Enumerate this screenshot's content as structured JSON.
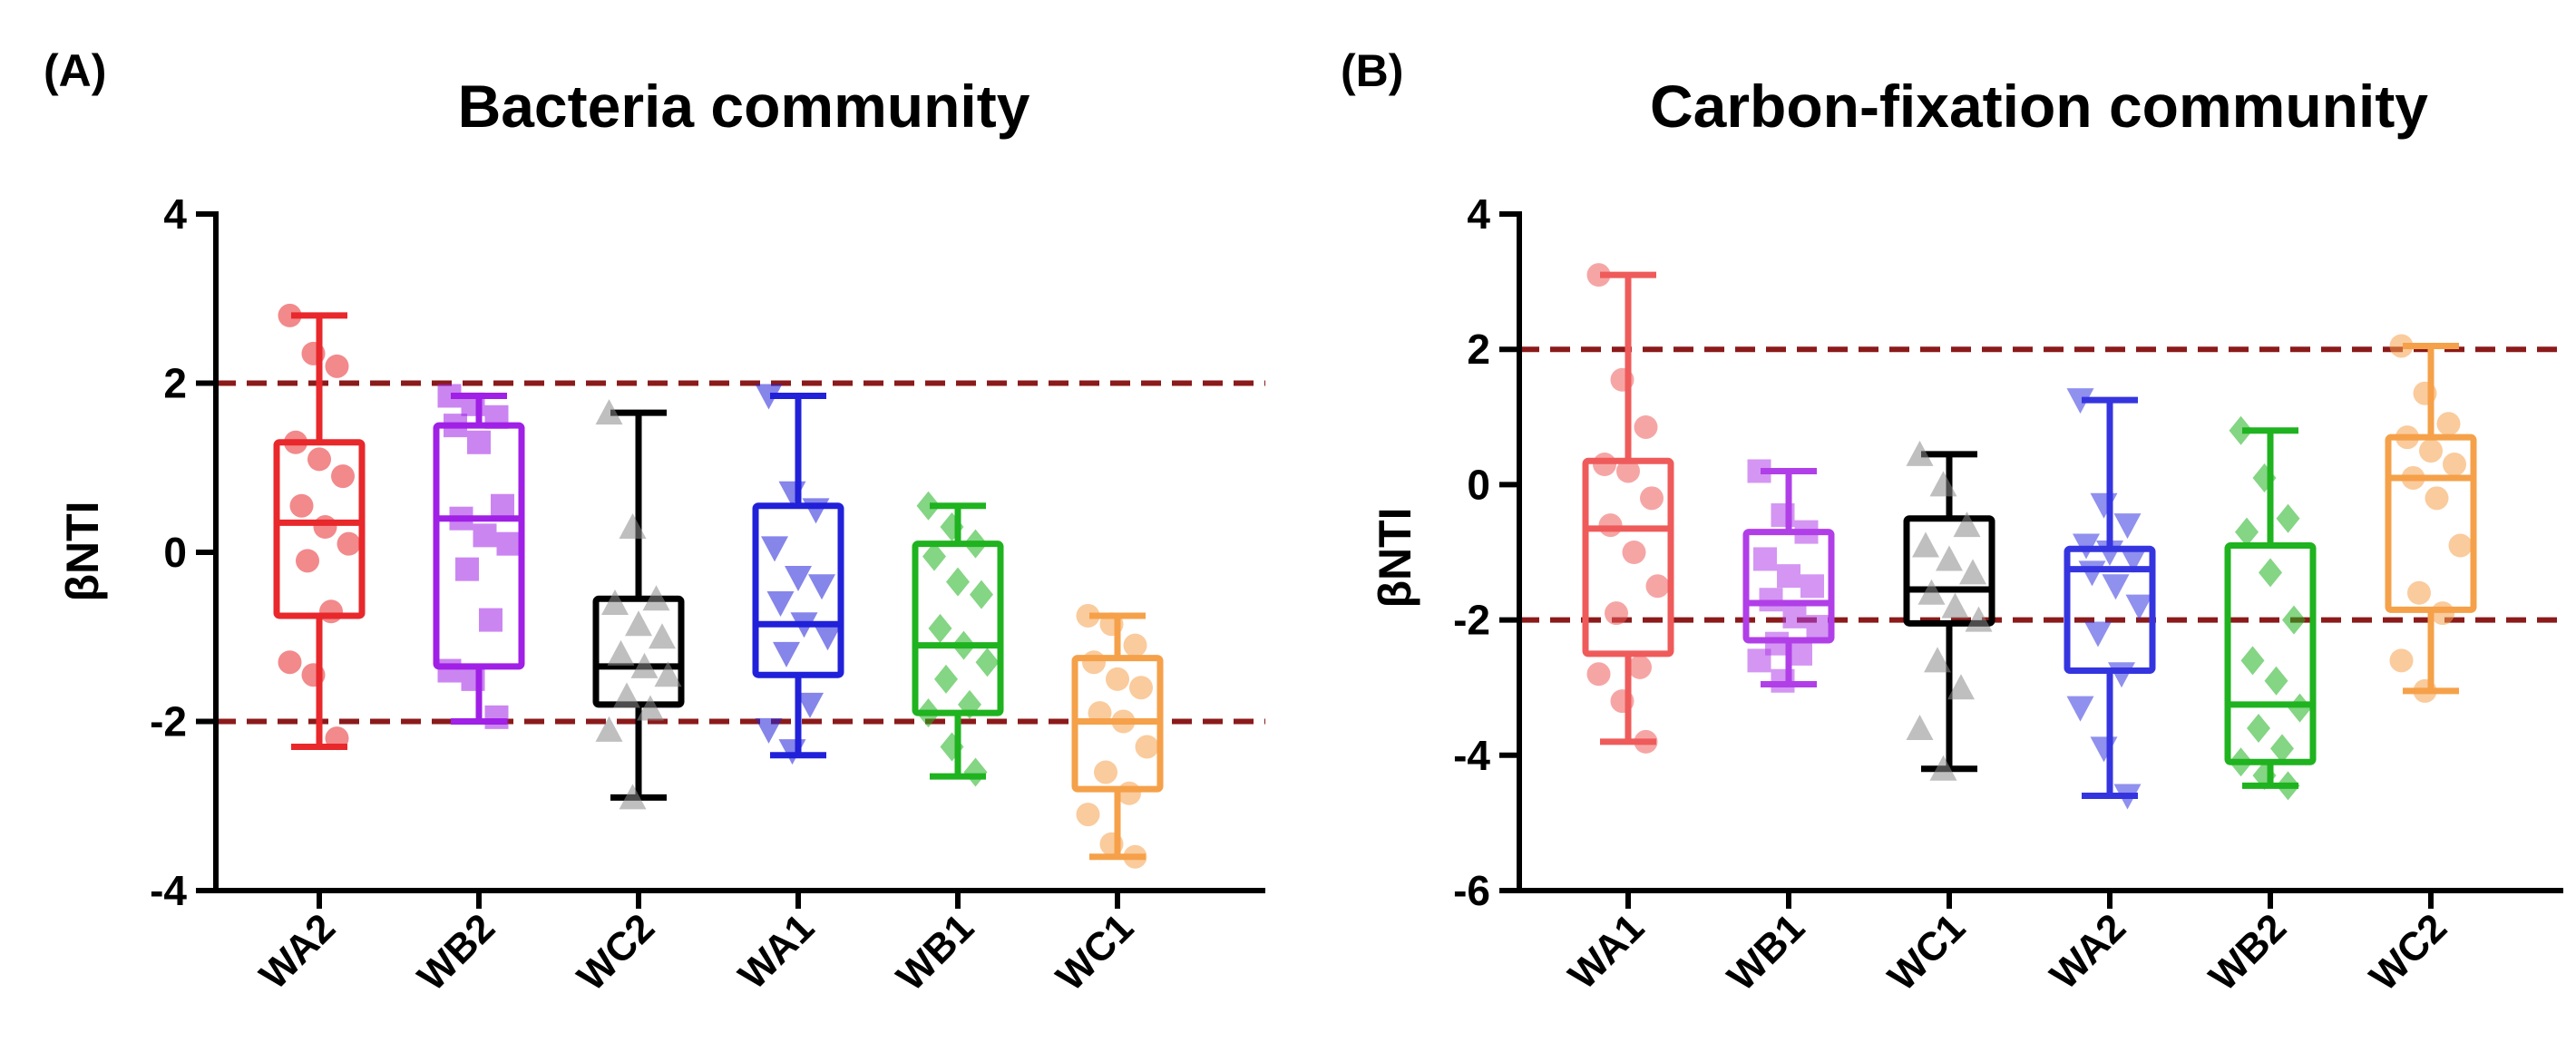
{
  "chart_data": [
    {
      "type": "box",
      "panel_label": "(A)",
      "title": "Bacteria community",
      "ylabel": "βNTI",
      "xlabel": "",
      "ylim": [
        -4,
        4
      ],
      "yticks": [
        4,
        2,
        0,
        -2,
        -4
      ],
      "reference_lines": [
        2,
        -2
      ],
      "grid": false,
      "series": [
        {
          "name": "WA2",
          "color": "#e8282b",
          "marker": "circle",
          "min": -2.3,
          "q1": -0.75,
          "median": 0.35,
          "q3": 1.3,
          "max": 2.8,
          "points": [
            2.8,
            2.35,
            2.2,
            1.3,
            1.1,
            0.9,
            0.55,
            0.3,
            0.1,
            -0.1,
            -0.7,
            -1.3,
            -1.45,
            -2.2
          ]
        },
        {
          "name": "WB2",
          "color": "#a020e6",
          "marker": "square",
          "min": -2.0,
          "q1": -1.35,
          "median": 0.4,
          "q3": 1.5,
          "max": 1.85,
          "points": [
            1.85,
            1.75,
            1.6,
            1.5,
            1.3,
            0.55,
            0.4,
            0.2,
            0.1,
            -0.2,
            -0.8,
            -1.4,
            -1.5,
            -1.95
          ]
        },
        {
          "name": "WC2",
          "color": "#000000",
          "marker": "triangle",
          "min": -2.9,
          "q1": -1.8,
          "median": -1.35,
          "q3": -0.55,
          "max": 1.65,
          "points": [
            1.65,
            0.3,
            -0.55,
            -0.6,
            -0.85,
            -1.0,
            -1.2,
            -1.35,
            -1.45,
            -1.7,
            -1.85,
            -2.1,
            -2.9
          ]
        },
        {
          "name": "WA1",
          "color": "#2121d9",
          "marker": "triangle-down",
          "min": -2.4,
          "q1": -1.45,
          "median": -0.85,
          "q3": 0.55,
          "max": 1.85,
          "points": [
            1.85,
            0.7,
            0.5,
            0.05,
            -0.3,
            -0.4,
            -0.6,
            -0.85,
            -1.0,
            -1.2,
            -1.8,
            -2.1,
            -2.35
          ]
        },
        {
          "name": "WB1",
          "color": "#1fb31f",
          "marker": "diamond",
          "min": -2.65,
          "q1": -1.9,
          "median": -1.1,
          "q3": 0.1,
          "max": 0.55,
          "points": [
            0.55,
            0.3,
            0.1,
            -0.05,
            -0.35,
            -0.5,
            -0.9,
            -1.1,
            -1.3,
            -1.5,
            -1.8,
            -1.9,
            -2.3,
            -2.6
          ]
        },
        {
          "name": "WC1",
          "color": "#f5a14a",
          "marker": "circle",
          "min": -3.6,
          "q1": -2.8,
          "median": -2.0,
          "q3": -1.25,
          "max": -0.75,
          "points": [
            -0.75,
            -0.85,
            -1.1,
            -1.3,
            -1.5,
            -1.6,
            -1.9,
            -2.0,
            -2.3,
            -2.6,
            -2.85,
            -3.1,
            -3.45,
            -3.6
          ]
        }
      ]
    },
    {
      "type": "box",
      "panel_label": "(B)",
      "title": "Carbon-fixation community",
      "ylabel": "βNTI",
      "xlabel": "",
      "ylim": [
        -6,
        4
      ],
      "yticks": [
        4,
        2,
        0,
        -2,
        -4,
        -6
      ],
      "reference_lines": [
        2,
        -2
      ],
      "grid": false,
      "series": [
        {
          "name": "WA1",
          "color": "#ef5b5b",
          "marker": "circle",
          "min": -3.8,
          "q1": -2.5,
          "median": -0.65,
          "q3": 0.35,
          "max": 3.1,
          "points": [
            3.1,
            1.55,
            0.85,
            0.3,
            0.2,
            -0.2,
            -0.6,
            -1.0,
            -1.5,
            -1.9,
            -2.7,
            -2.8,
            -3.2,
            -3.8
          ]
        },
        {
          "name": "WB1",
          "color": "#b13fe8",
          "marker": "square",
          "min": -2.95,
          "q1": -2.3,
          "median": -1.75,
          "q3": -0.7,
          "max": 0.2,
          "points": [
            0.2,
            -0.45,
            -0.7,
            -1.1,
            -1.35,
            -1.5,
            -1.7,
            -1.95,
            -2.1,
            -2.35,
            -2.5,
            -2.6,
            -2.9
          ]
        },
        {
          "name": "WC1",
          "color": "#000000",
          "marker": "triangle",
          "min": -4.2,
          "q1": -2.05,
          "median": -1.55,
          "q3": -0.5,
          "max": 0.45,
          "points": [
            0.45,
            0.0,
            -0.6,
            -0.9,
            -1.1,
            -1.3,
            -1.6,
            -1.8,
            -2.0,
            -2.6,
            -3.0,
            -3.6,
            -4.2
          ]
        },
        {
          "name": "WA2",
          "color": "#3535e0",
          "marker": "triangle-down",
          "min": -4.6,
          "q1": -2.75,
          "median": -1.25,
          "q3": -0.95,
          "max": 1.25,
          "points": [
            1.25,
            -0.3,
            -0.6,
            -0.9,
            -1.0,
            -1.1,
            -1.3,
            -1.5,
            -1.8,
            -2.2,
            -2.8,
            -3.3,
            -3.9,
            -4.6
          ]
        },
        {
          "name": "WB2",
          "color": "#1fb31f",
          "marker": "diamond",
          "min": -4.45,
          "q1": -4.1,
          "median": -3.25,
          "q3": -0.9,
          "max": 0.8,
          "points": [
            0.8,
            0.1,
            -0.5,
            -0.7,
            -1.3,
            -2.0,
            -2.6,
            -2.9,
            -3.3,
            -3.6,
            -3.9,
            -4.1,
            -4.3,
            -4.45
          ]
        },
        {
          "name": "WC2",
          "color": "#f5a14a",
          "marker": "circle",
          "min": -3.05,
          "q1": -1.85,
          "median": 0.1,
          "q3": 0.7,
          "max": 2.05,
          "points": [
            2.05,
            1.35,
            0.9,
            0.7,
            0.5,
            0.3,
            0.1,
            -0.2,
            -0.9,
            -1.6,
            -1.9,
            -2.6,
            -3.05
          ]
        }
      ]
    }
  ]
}
